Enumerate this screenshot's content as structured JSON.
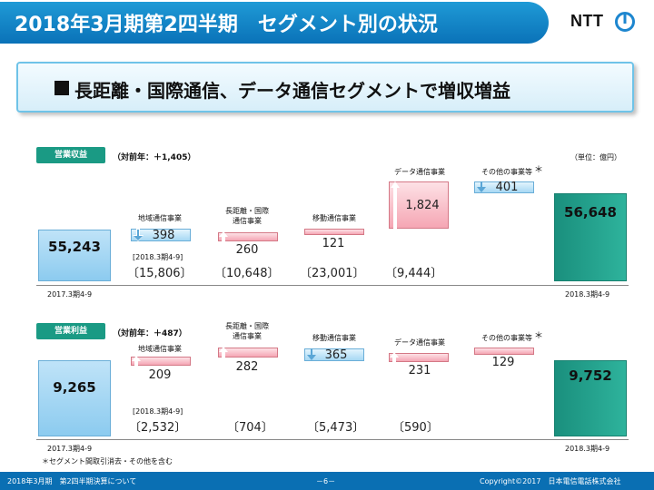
{
  "header": {
    "title": "2018年3月期第2四半期　セグメント別の状況",
    "logo": "NTT"
  },
  "banner": {
    "text": "長距離・国際通信、データ通信セグメントで増収増益"
  },
  "unit": "（単位：億円）",
  "revenue": {
    "label": "営業収益",
    "change": "（対前年：＋1,405）",
    "start_total": "55,243",
    "end_total": "56,648",
    "start_period": "2017.3期4-9",
    "end_period": "2018.3期4-9",
    "prior_note": "[2018.3期4-9]",
    "segments": [
      {
        "name": "地域通信事業",
        "delta": "398",
        "direction": "down",
        "base": "〔15,806〕"
      },
      {
        "name": "長距離・国際\n通信事業",
        "delta": "260",
        "direction": "up",
        "base": "〔10,648〕"
      },
      {
        "name": "移動通信事業",
        "delta": "121",
        "direction": "up",
        "base": "〔23,001〕"
      },
      {
        "name": "データ通信事業",
        "delta": "1,824",
        "direction": "up",
        "base": "〔9,444〕"
      },
      {
        "name": "その他の事業等",
        "delta": "401",
        "direction": "down",
        "base": ""
      }
    ],
    "asterisk": "＊"
  },
  "profit": {
    "label": "営業利益",
    "change": "（対前年：＋487）",
    "start_total": "9,265",
    "end_total": "9,752",
    "start_period": "2017.3期4-9",
    "end_period": "2018.3期4-9",
    "prior_note": "[2018.3期4-9]",
    "segments": [
      {
        "name": "地域通信事業",
        "delta": "209",
        "direction": "up",
        "base": "〔2,532〕"
      },
      {
        "name": "長距離・国際\n通信事業",
        "delta": "282",
        "direction": "up",
        "base": "〔704〕"
      },
      {
        "name": "移動通信事業",
        "delta": "365",
        "direction": "down",
        "base": "〔5,473〕"
      },
      {
        "name": "データ通信事業",
        "delta": "231",
        "direction": "up",
        "base": "〔590〕"
      },
      {
        "name": "その他の事業等",
        "delta": "129",
        "direction": "up",
        "base": ""
      }
    ],
    "asterisk": "＊"
  },
  "footnote": "＊セグメント間取引消去・その他を含む",
  "footer": {
    "left": "2018年3月期　第2四半期決算について",
    "page": "－6－",
    "copyright": "Copyright©2017　日本電信電話株式会社"
  },
  "colors": {
    "header": "#0a72b8",
    "section_label": "#1a9a84",
    "increase": "#f5a6b4",
    "decrease": "#a7d8f4",
    "end_total": "#1a8f7d"
  }
}
